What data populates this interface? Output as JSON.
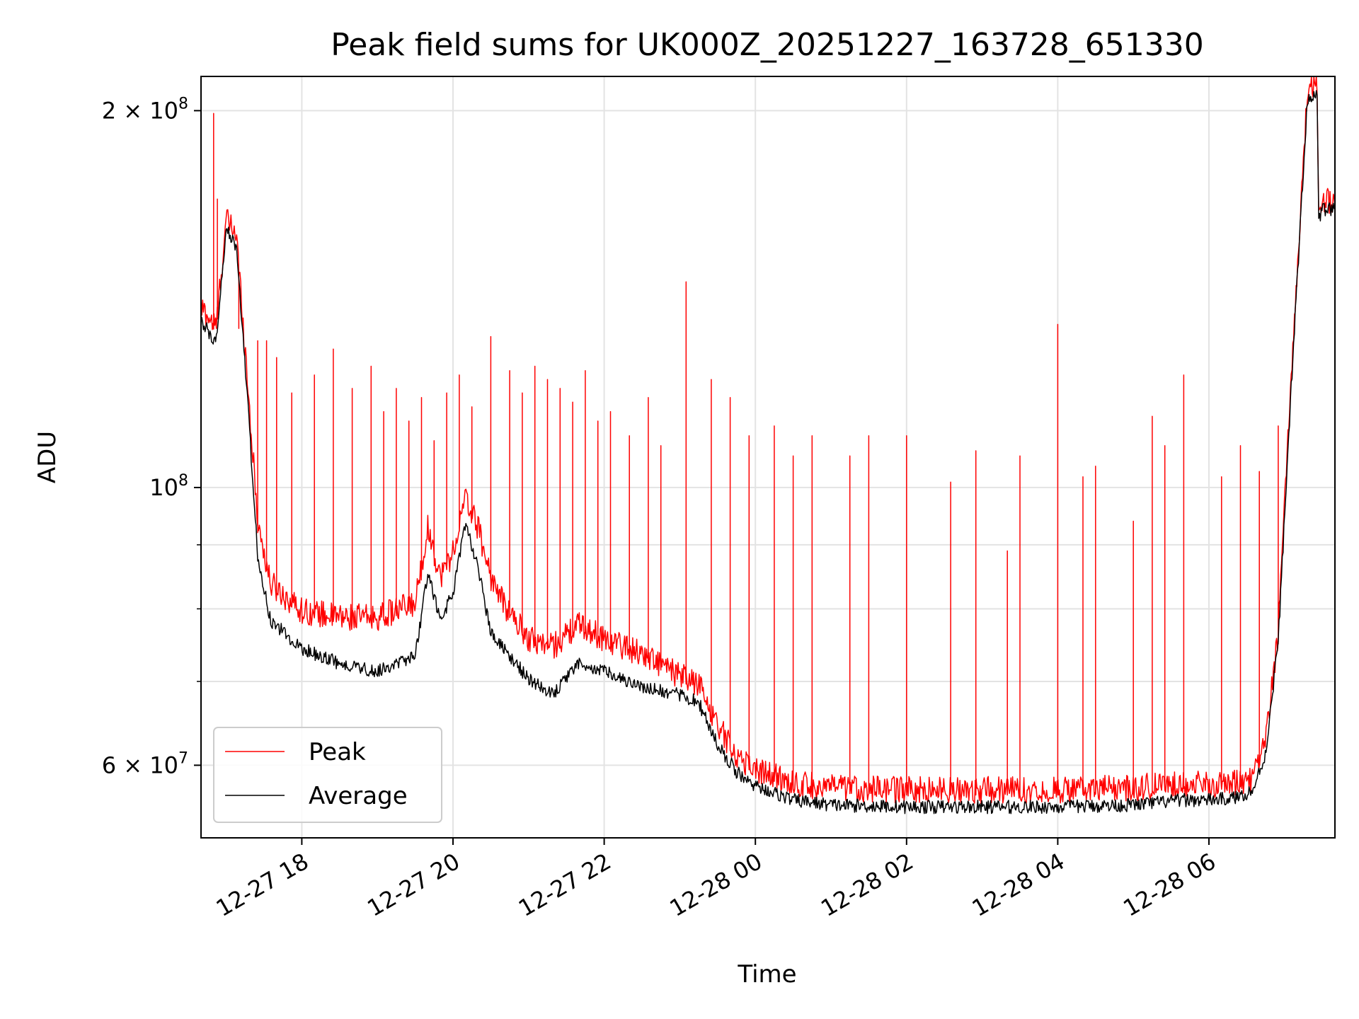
{
  "chart_data": {
    "type": "line",
    "title": "Peak field sums for UK000Z_20251227_163728_651330",
    "xlabel": "Time",
    "ylabel": "ADU",
    "yscale": "log",
    "ylim": [
      52500000,
      213000000
    ],
    "xlim": [
      "2025-12-27 16:40",
      "2025-12-28 07:40"
    ],
    "grid": true,
    "legend_position": "lower-left",
    "x_ticks": [
      {
        "value": "2025-12-27 18:00",
        "label": "12-27 18"
      },
      {
        "value": "2025-12-27 20:00",
        "label": "12-27 20"
      },
      {
        "value": "2025-12-27 22:00",
        "label": "12-27 22"
      },
      {
        "value": "2025-12-28 00:00",
        "label": "12-28 00"
      },
      {
        "value": "2025-12-28 02:00",
        "label": "12-28 02"
      },
      {
        "value": "2025-12-28 04:00",
        "label": "12-28 04"
      },
      {
        "value": "2025-12-28 06:00",
        "label": "12-28 06"
      }
    ],
    "y_ticks": [
      {
        "value": 200000000,
        "mantissa": "2",
        "exponent": "8"
      },
      {
        "value": 100000000,
        "mantissa": "",
        "exponent": "8"
      },
      {
        "value": 60000000,
        "mantissa": "6",
        "exponent": "7"
      }
    ],
    "series": [
      {
        "name": "Peak",
        "color": "#ff0000",
        "baseline": {
          "x": [
            "2025-12-27 16:40",
            "2025-12-27 16:52",
            "2025-12-27 17:00",
            "2025-12-27 17:08",
            "2025-12-27 17:15",
            "2025-12-27 17:25",
            "2025-12-27 17:35",
            "2025-12-27 18:00",
            "2025-12-27 18:30",
            "2025-12-27 19:00",
            "2025-12-27 19:30",
            "2025-12-27 19:40",
            "2025-12-27 19:50",
            "2025-12-27 20:00",
            "2025-12-27 20:10",
            "2025-12-27 20:20",
            "2025-12-27 20:30",
            "2025-12-27 20:40",
            "2025-12-27 21:00",
            "2025-12-27 21:20",
            "2025-12-27 21:40",
            "2025-12-27 22:00",
            "2025-12-27 22:30",
            "2025-12-27 23:00",
            "2025-12-27 23:15",
            "2025-12-27 23:30",
            "2025-12-27 23:45",
            "2025-12-28 00:00",
            "2025-12-28 00:30",
            "2025-12-28 01:00",
            "2025-12-28 02:00",
            "2025-12-28 03:00",
            "2025-12-28 04:00",
            "2025-12-28 05:00",
            "2025-12-28 05:40",
            "2025-12-28 06:00",
            "2025-12-28 06:20",
            "2025-12-28 06:35",
            "2025-12-28 06:45",
            "2025-12-28 06:55",
            "2025-12-28 07:05",
            "2025-12-28 07:12",
            "2025-12-28 07:18",
            "2025-12-28 07:22",
            "2025-12-28 07:26",
            "2025-12-28 07:27",
            "2025-12-28 07:30",
            "2025-12-28 07:40"
          ],
          "y": [
            138000000,
            133000000,
            162000000,
            158000000,
            128000000,
            93000000,
            83000000,
            79000000,
            78000000,
            78000000,
            80000000,
            92000000,
            84000000,
            88000000,
            97000000,
            92000000,
            84000000,
            80000000,
            75000000,
            74000000,
            77000000,
            75000000,
            73000000,
            70000000,
            69000000,
            64000000,
            60500000,
            59000000,
            57500000,
            57000000,
            56800000,
            56800000,
            56800000,
            57000000,
            57500000,
            57300000,
            57500000,
            58000000,
            62000000,
            76000000,
            120000000,
            160000000,
            204000000,
            208000000,
            206000000,
            165000000,
            168000000,
            168000000
          ]
        },
        "noise_amplitude": 0.05,
        "spikes": {
          "x": [
            "2025-12-27 16:50",
            "2025-12-27 16:53",
            "2025-12-27 17:10",
            "2025-12-27 17:25",
            "2025-12-27 17:32",
            "2025-12-27 17:40",
            "2025-12-27 17:52",
            "2025-12-27 18:10",
            "2025-12-27 18:25",
            "2025-12-27 18:40",
            "2025-12-27 18:55",
            "2025-12-27 19:05",
            "2025-12-27 19:15",
            "2025-12-27 19:25",
            "2025-12-27 19:35",
            "2025-12-27 19:45",
            "2025-12-27 19:55",
            "2025-12-27 20:05",
            "2025-12-27 20:15",
            "2025-12-27 20:30",
            "2025-12-27 20:45",
            "2025-12-27 20:55",
            "2025-12-27 21:05",
            "2025-12-27 21:15",
            "2025-12-27 21:25",
            "2025-12-27 21:35",
            "2025-12-27 21:45",
            "2025-12-27 21:55",
            "2025-12-27 22:05",
            "2025-12-27 22:20",
            "2025-12-27 22:35",
            "2025-12-27 22:45",
            "2025-12-27 23:05",
            "2025-12-27 23:25",
            "2025-12-27 23:40",
            "2025-12-27 23:55",
            "2025-12-28 00:15",
            "2025-12-28 00:30",
            "2025-12-28 00:45",
            "2025-12-28 01:15",
            "2025-12-28 01:30",
            "2025-12-28 02:00",
            "2025-12-28 02:35",
            "2025-12-28 02:55",
            "2025-12-28 03:20",
            "2025-12-28 03:30",
            "2025-12-28 04:00",
            "2025-12-28 04:20",
            "2025-12-28 04:30",
            "2025-12-28 05:00",
            "2025-12-28 05:15",
            "2025-12-28 05:25",
            "2025-12-28 05:40",
            "2025-12-28 06:10",
            "2025-12-28 06:25",
            "2025-12-28 06:40",
            "2025-12-28 06:55"
          ],
          "y": [
            199000000,
            170000000,
            134000000,
            131000000,
            131000000,
            127000000,
            119000000,
            123000000,
            129000000,
            120000000,
            125000000,
            115000000,
            120000000,
            113000000,
            118000000,
            109000000,
            119000000,
            123000000,
            116000000,
            132000000,
            124000000,
            119000000,
            125000000,
            122000000,
            120000000,
            117000000,
            124000000,
            113000000,
            115000000,
            110000000,
            118000000,
            108000000,
            146000000,
            122000000,
            118000000,
            110000000,
            112000000,
            106000000,
            110000000,
            106000000,
            110000000,
            110000000,
            101000000,
            107000000,
            89000000,
            106000000,
            135000000,
            102000000,
            104000000,
            94000000,
            114000000,
            108000000,
            123000000,
            102000000,
            108000000,
            103000000,
            112000000
          ]
        }
      },
      {
        "name": "Average",
        "color": "#000000",
        "baseline": {
          "x": [
            "2025-12-27 16:40",
            "2025-12-27 16:52",
            "2025-12-27 17:00",
            "2025-12-27 17:08",
            "2025-12-27 17:15",
            "2025-12-27 17:25",
            "2025-12-27 17:35",
            "2025-12-27 18:00",
            "2025-12-27 18:30",
            "2025-12-27 19:00",
            "2025-12-27 19:30",
            "2025-12-27 19:40",
            "2025-12-27 19:50",
            "2025-12-27 20:00",
            "2025-12-27 20:10",
            "2025-12-27 20:20",
            "2025-12-27 20:30",
            "2025-12-27 20:40",
            "2025-12-27 21:00",
            "2025-12-27 21:20",
            "2025-12-27 21:40",
            "2025-12-27 22:00",
            "2025-12-27 22:30",
            "2025-12-27 23:00",
            "2025-12-27 23:15",
            "2025-12-27 23:30",
            "2025-12-27 23:45",
            "2025-12-28 00:00",
            "2025-12-28 00:30",
            "2025-12-28 01:00",
            "2025-12-28 02:00",
            "2025-12-28 03:00",
            "2025-12-28 04:00",
            "2025-12-28 05:00",
            "2025-12-28 05:40",
            "2025-12-28 06:00",
            "2025-12-28 06:20",
            "2025-12-28 06:35",
            "2025-12-28 06:45",
            "2025-12-28 06:55",
            "2025-12-28 07:05",
            "2025-12-28 07:12",
            "2025-12-28 07:18",
            "2025-12-28 07:22",
            "2025-12-28 07:26",
            "2025-12-28 07:27",
            "2025-12-28 07:30",
            "2025-12-28 07:40"
          ],
          "y": [
            135000000,
            130000000,
            160000000,
            155000000,
            125000000,
            88000000,
            78000000,
            74000000,
            72000000,
            71000000,
            73000000,
            85000000,
            78000000,
            82000000,
            93000000,
            86000000,
            76000000,
            74000000,
            70000000,
            68000000,
            72000000,
            71000000,
            69000000,
            68000000,
            67000000,
            62000000,
            59000000,
            57500000,
            56000000,
            55500000,
            55300000,
            55300000,
            55300000,
            55500000,
            56000000,
            56000000,
            56200000,
            57000000,
            61000000,
            75000000,
            118000000,
            158000000,
            202000000,
            205000000,
            204000000,
            162000000,
            166000000,
            166000000
          ]
        },
        "noise_amplitude": 0.025
      }
    ]
  }
}
